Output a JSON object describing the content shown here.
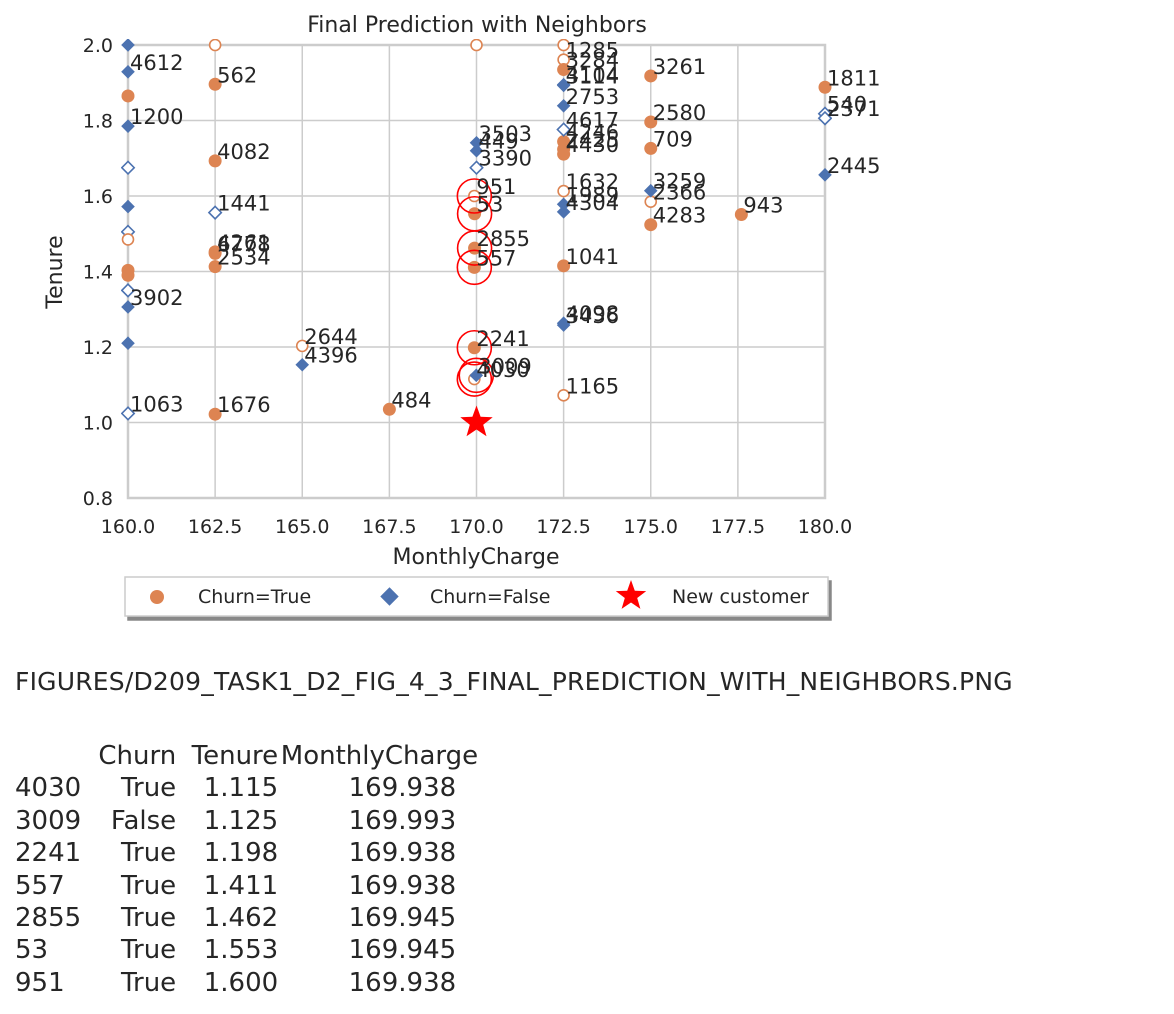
{
  "chart_data": {
    "type": "scatter",
    "title": "Final Prediction with Neighbors",
    "xlabel": "MonthlyCharge",
    "ylabel": "Tenure",
    "xlim": [
      160.0,
      180.0
    ],
    "ylim": [
      0.8,
      2.0
    ],
    "x_ticks": [
      "160.0",
      "162.5",
      "165.0",
      "167.5",
      "170.0",
      "172.5",
      "175.0",
      "177.5",
      "180.0"
    ],
    "y_ticks": [
      "0.8",
      "1.0",
      "1.2",
      "1.4",
      "1.6",
      "1.8",
      "2.0"
    ],
    "grid": true,
    "legend_position": "bottom",
    "legend": [
      "Churn=True",
      "Churn=False",
      "New customer"
    ],
    "colors": {
      "true": "#dd8452",
      "false": "#4c72b0",
      "new": "#ff0000",
      "neighbor_ring": "#ff0000",
      "grid": "#cccccc"
    },
    "series": [
      {
        "name": "Churn=True",
        "marker": "circle",
        "points": [
          {
            "x": 162.5,
            "y": 1.896,
            "label": "562",
            "filled": true
          },
          {
            "x": 162.5,
            "y": 1.693,
            "label": "4082",
            "filled": true
          },
          {
            "x": 162.5,
            "y": 1.452,
            "label": "4261",
            "filled": true
          },
          {
            "x": 162.5,
            "y": 1.448,
            "label": "6778",
            "filled": true
          },
          {
            "x": 162.5,
            "y": 1.413,
            "label": "2534",
            "filled": true
          },
          {
            "x": 162.5,
            "y": 1.022,
            "label": "1676",
            "filled": true
          },
          {
            "x": 165.0,
            "y": 1.203,
            "label": "2644",
            "filled": false
          },
          {
            "x": 167.5,
            "y": 1.035,
            "label": "484",
            "filled": true
          },
          {
            "x": 169.938,
            "y": 1.6,
            "label": "951",
            "filled": false
          },
          {
            "x": 169.945,
            "y": 1.553,
            "label": "53",
            "filled": true
          },
          {
            "x": 169.945,
            "y": 1.462,
            "label": "2855",
            "filled": true
          },
          {
            "x": 169.938,
            "y": 1.411,
            "label": "557",
            "filled": true
          },
          {
            "x": 169.938,
            "y": 1.198,
            "label": "2241",
            "filled": true
          },
          {
            "x": 169.938,
            "y": 1.115,
            "label": "4030",
            "filled": false
          },
          {
            "x": 172.5,
            "y": 1.961,
            "label": "1285",
            "filled": false
          },
          {
            "x": 172.5,
            "y": 1.935,
            "label": "3284",
            "filled": true
          },
          {
            "x": 172.5,
            "y": 1.744,
            "label": "4246",
            "filled": true
          },
          {
            "x": 172.5,
            "y": 1.724,
            "label": "2425",
            "filled": true
          },
          {
            "x": 172.5,
            "y": 1.711,
            "label": "4430",
            "filled": true
          },
          {
            "x": 172.5,
            "y": 1.613,
            "label": "1632",
            "filled": false
          },
          {
            "x": 172.5,
            "y": 1.415,
            "label": "1041",
            "filled": true
          },
          {
            "x": 172.5,
            "y": 1.072,
            "label": "1165",
            "filled": false
          },
          {
            "x": 175.0,
            "y": 1.918,
            "label": "3261",
            "filled": true
          },
          {
            "x": 175.0,
            "y": 1.796,
            "label": "2580",
            "filled": true
          },
          {
            "x": 175.0,
            "y": 1.726,
            "label": "709",
            "filled": true
          },
          {
            "x": 175.0,
            "y": 1.585,
            "label": "2366",
            "filled": false
          },
          {
            "x": 175.0,
            "y": 1.524,
            "label": "4283",
            "filled": true
          },
          {
            "x": 177.6,
            "y": 1.551,
            "label": "943",
            "filled": true
          },
          {
            "x": 180.0,
            "y": 1.888,
            "label": "1811",
            "filled": true
          }
        ]
      },
      {
        "name": "Churn=False",
        "marker": "diamond",
        "points": [
          {
            "x": 160.0,
            "y": 1.929,
            "label": "4612",
            "filled": true
          },
          {
            "x": 160.0,
            "y": 1.785,
            "label": "1200",
            "filled": true
          },
          {
            "x": 160.0,
            "y": 1.306,
            "label": "3902",
            "filled": true
          },
          {
            "x": 160.0,
            "y": 1.024,
            "label": "1063",
            "filled": false
          },
          {
            "x": 162.5,
            "y": 1.556,
            "label": "1441",
            "filled": false
          },
          {
            "x": 165.0,
            "y": 1.153,
            "label": "4396",
            "filled": true
          },
          {
            "x": 169.993,
            "y": 1.125,
            "label": "3009",
            "filled": true
          },
          {
            "x": 170.0,
            "y": 1.741,
            "label": "3503",
            "filled": true
          },
          {
            "x": 170.0,
            "y": 1.72,
            "label": "449",
            "filled": true
          },
          {
            "x": 170.0,
            "y": 1.675,
            "label": "3390",
            "filled": false
          },
          {
            "x": 172.5,
            "y": 1.895,
            "label": "4104",
            "filled": true
          },
          {
            "x": 172.5,
            "y": 1.893,
            "label": "3114",
            "filled": true
          },
          {
            "x": 172.5,
            "y": 1.839,
            "label": "2753",
            "filled": true
          },
          {
            "x": 172.5,
            "y": 1.776,
            "label": "4617",
            "filled": false
          },
          {
            "x": 172.5,
            "y": 1.578,
            "label": "1989",
            "filled": true
          },
          {
            "x": 172.5,
            "y": 1.558,
            "label": "4304",
            "filled": true
          },
          {
            "x": 172.5,
            "y": 1.263,
            "label": "4098",
            "filled": true
          },
          {
            "x": 172.5,
            "y": 1.258,
            "label": "3436",
            "filled": true
          },
          {
            "x": 175.0,
            "y": 1.614,
            "label": "3259",
            "filled": true
          },
          {
            "x": 180.0,
            "y": 1.818,
            "label": "540",
            "filled": false
          },
          {
            "x": 180.0,
            "y": 1.806,
            "label": "2371",
            "filled": false
          },
          {
            "x": 180.0,
            "y": 1.656,
            "label": "2445",
            "filled": true
          }
        ]
      },
      {
        "name": "New customer",
        "marker": "star",
        "points": [
          {
            "x": 170.0,
            "y": 1.0
          }
        ]
      }
    ],
    "neighbors": [
      {
        "x": 169.938,
        "y": 1.115
      },
      {
        "x": 169.993,
        "y": 1.125
      },
      {
        "x": 169.938,
        "y": 1.198
      },
      {
        "x": 169.938,
        "y": 1.411
      },
      {
        "x": 169.945,
        "y": 1.462
      },
      {
        "x": 169.945,
        "y": 1.553
      },
      {
        "x": 169.938,
        "y": 1.6
      }
    ],
    "edge_marks_unlabeled": [
      {
        "x": 160.0,
        "y": 2.0,
        "class": "false",
        "filled": true
      },
      {
        "x": 162.5,
        "y": 2.0,
        "class": "true",
        "filled": false
      },
      {
        "x": 170.0,
        "y": 2.0,
        "class": "true",
        "filled": false
      },
      {
        "x": 172.5,
        "y": 2.0,
        "class": "true",
        "filled": false
      },
      {
        "x": 160.0,
        "y": 1.865,
        "class": "true",
        "filled": true
      },
      {
        "x": 160.0,
        "y": 1.675,
        "class": "false",
        "filled": false
      },
      {
        "x": 160.0,
        "y": 1.572,
        "class": "false",
        "filled": true
      },
      {
        "x": 160.0,
        "y": 1.505,
        "class": "false",
        "filled": false
      },
      {
        "x": 160.0,
        "y": 1.485,
        "class": "true",
        "filled": false
      },
      {
        "x": 160.0,
        "y": 1.403,
        "class": "true",
        "filled": true
      },
      {
        "x": 160.0,
        "y": 1.39,
        "class": "true",
        "filled": true
      },
      {
        "x": 160.0,
        "y": 1.35,
        "class": "false",
        "filled": false
      },
      {
        "x": 160.0,
        "y": 1.21,
        "class": "false",
        "filled": true
      }
    ]
  },
  "caption": "FIGURES/D209_TASK1_D2_FIG_4_3_FINAL_PREDICTION_WITH_NEIGHBORS.PNG",
  "table": {
    "columns": [
      "Churn",
      "Tenure",
      "MonthlyCharge"
    ],
    "rows": [
      {
        "index": "4030",
        "Churn": "True",
        "Tenure": "1.115",
        "MonthlyCharge": "169.938"
      },
      {
        "index": "3009",
        "Churn": "False",
        "Tenure": "1.125",
        "MonthlyCharge": "169.993"
      },
      {
        "index": "2241",
        "Churn": "True",
        "Tenure": "1.198",
        "MonthlyCharge": "169.938"
      },
      {
        "index": "557",
        "Churn": "True",
        "Tenure": "1.411",
        "MonthlyCharge": "169.938"
      },
      {
        "index": "2855",
        "Churn": "True",
        "Tenure": "1.462",
        "MonthlyCharge": "169.945"
      },
      {
        "index": "53",
        "Churn": "True",
        "Tenure": "1.553",
        "MonthlyCharge": "169.945"
      },
      {
        "index": "951",
        "Churn": "True",
        "Tenure": "1.600",
        "MonthlyCharge": "169.938"
      }
    ]
  }
}
